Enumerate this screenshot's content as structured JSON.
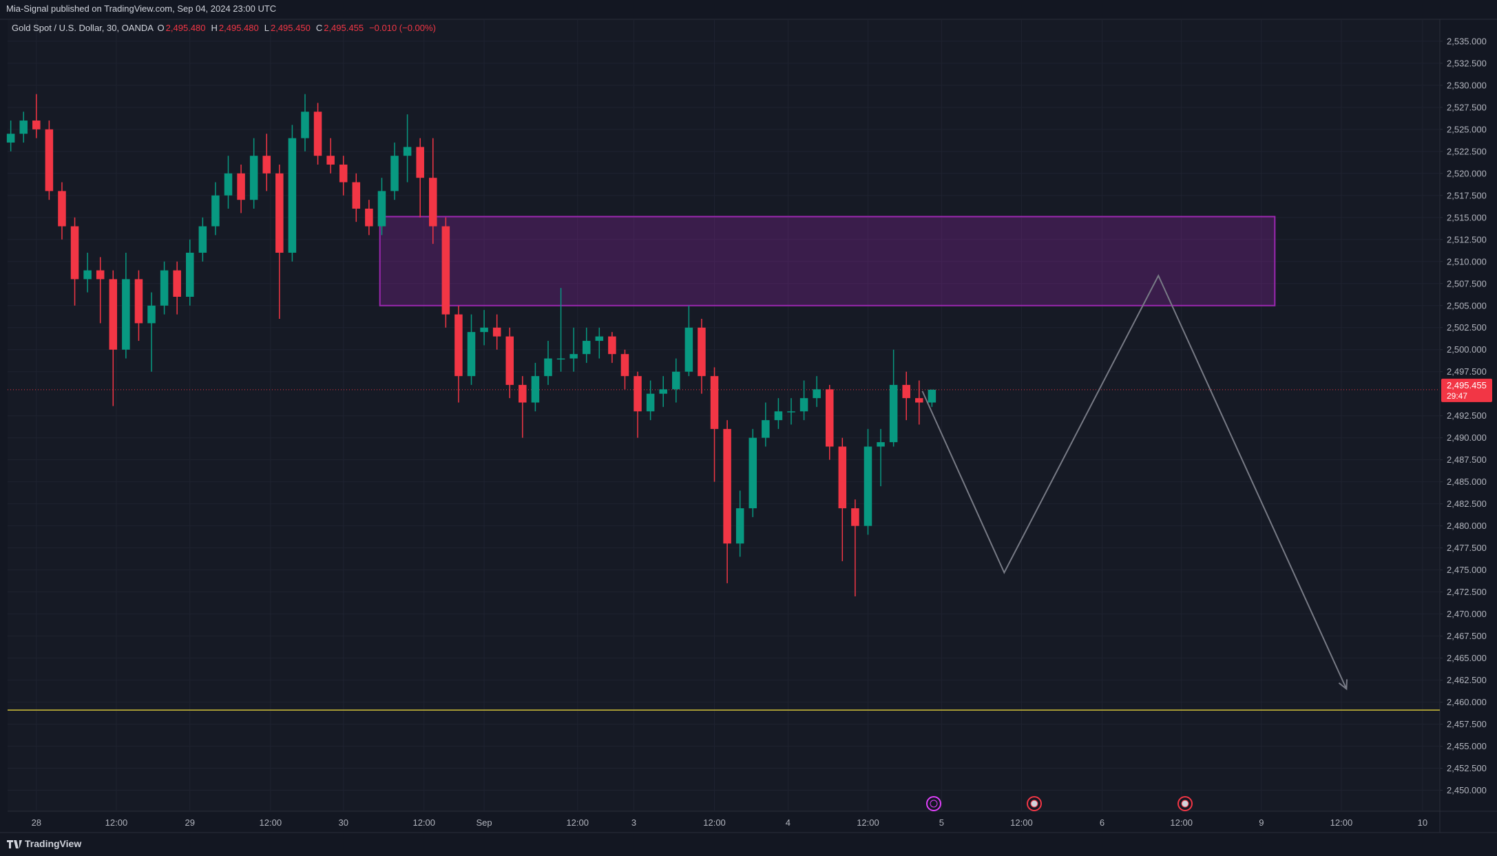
{
  "header": {
    "publisher": "Mia-Signal published on TradingView.com, Sep 04, 2024 23:00 UTC"
  },
  "footer": {
    "brand": "TradingView"
  },
  "chart_data": {
    "type": "candlestick",
    "symbol": "Gold Spot / U.S. Dollar, 30, OANDA",
    "ohlc_legend": [
      {
        "key": "O",
        "value": 2495.48,
        "label": "2,495.480"
      },
      {
        "key": "H",
        "value": 2495.48,
        "label": "2,495.480"
      },
      {
        "key": "L",
        "value": 2495.45,
        "label": "2,495.450"
      },
      {
        "key": "C",
        "value": 2495.455,
        "label": "2,495.455"
      }
    ],
    "change": "−0.010 (−0.00%)",
    "up_color": "#089981",
    "down_color": "#f23645",
    "x": [
      -4,
      -2,
      0,
      2,
      4,
      6,
      8,
      10,
      12,
      14,
      16,
      18,
      20,
      22,
      24,
      26,
      28,
      30,
      32,
      34,
      36,
      38,
      40,
      42,
      44,
      46,
      48,
      50,
      52,
      54,
      56,
      58,
      60,
      62,
      64,
      66,
      68,
      70,
      72,
      74,
      76,
      78,
      80,
      82,
      84,
      86,
      88,
      90,
      92,
      94,
      96,
      98,
      100,
      102,
      104,
      106,
      108,
      110,
      112,
      114,
      116,
      118,
      120,
      122,
      124,
      126,
      128,
      130,
      132,
      134,
      136,
      138,
      140
    ],
    "open": [
      2523.5,
      2524.5,
      2526,
      2525,
      2518,
      2514,
      2508,
      2509,
      2508,
      2500,
      2508,
      2503,
      2505,
      2509,
      2506,
      2511,
      2514,
      2517.5,
      2520,
      2517,
      2522,
      2520,
      2511,
      2524,
      2527,
      2522,
      2521,
      2519,
      2516,
      2514,
      2518,
      2522,
      2523,
      2519.5,
      2514,
      2504,
      2497,
      2502,
      2502.5,
      2501.5,
      2496,
      2494,
      2497,
      2499,
      2499,
      2499.5,
      2501,
      2501.5,
      2499.5,
      2497,
      2493,
      2495,
      2495.5,
      2497.5,
      2502.5,
      2497,
      2491,
      2478,
      2482,
      2490,
      2492,
      2493,
      2493,
      2494.5,
      2495.5,
      2489,
      2482,
      2480,
      2489,
      2489.5,
      2496,
      2494.5,
      2494
    ],
    "high": [
      2526,
      2527,
      2529,
      2526,
      2519,
      2515,
      2511,
      2510.5,
      2509,
      2511,
      2509,
      2506.5,
      2510,
      2510,
      2512.5,
      2515,
      2519,
      2522,
      2521,
      2524,
      2524.5,
      2521,
      2525.5,
      2529,
      2528,
      2524,
      2522,
      2520,
      2517,
      2519.5,
      2523.5,
      2526.7,
      2524,
      2524,
      2515,
      2505,
      2504,
      2504.5,
      2504,
      2502.5,
      2497,
      2498.5,
      2501,
      2507,
      2502.5,
      2502.5,
      2502.5,
      2502,
      2500,
      2497.5,
      2496.5,
      2497,
      2499,
      2505,
      2503.5,
      2498,
      2492,
      2484,
      2491,
      2494,
      2494.5,
      2494.5,
      2496.5,
      2497,
      2496,
      2490,
      2483,
      2491,
      2491,
      2500,
      2497.5,
      2496.5,
      2495.48
    ],
    "low": [
      2522.5,
      2523.5,
      2524,
      2517,
      2512.5,
      2505,
      2506.5,
      2503,
      2493.6,
      2499,
      2501,
      2497.5,
      2504,
      2504,
      2505,
      2510,
      2513,
      2516,
      2515.5,
      2516,
      2518,
      2503.5,
      2510,
      2522.5,
      2521,
      2520,
      2517.5,
      2514.5,
      2513,
      2513,
      2517,
      2519,
      2515,
      2512,
      2502.5,
      2494,
      2496,
      2500.5,
      2500,
      2494.5,
      2490,
      2493,
      2496,
      2497.5,
      2497.5,
      2498.5,
      2499,
      2498.5,
      2495.5,
      2490,
      2492,
      2493.5,
      2494,
      2497,
      2495,
      2485,
      2473.5,
      2476.5,
      2481,
      2489,
      2491,
      2491.5,
      2492,
      2493.5,
      2487.5,
      2476,
      2472,
      2479,
      2484.5,
      2489,
      2492,
      2491.5,
      2493.5
    ],
    "close": [
      2524.5,
      2526,
      2525,
      2518,
      2514,
      2508,
      2509,
      2508,
      2500,
      2508,
      2503,
      2505,
      2509,
      2506,
      2511,
      2514,
      2517.5,
      2520,
      2517,
      2522,
      2520,
      2511,
      2524,
      2527,
      2522,
      2521,
      2519,
      2516,
      2514,
      2518,
      2522,
      2523,
      2519.5,
      2514,
      2504,
      2497,
      2502,
      2502.5,
      2501.5,
      2496,
      2494,
      2497,
      2499,
      2499,
      2499.5,
      2501,
      2501.5,
      2499.5,
      2497,
      2493,
      2495,
      2495.5,
      2497.5,
      2502.5,
      2497,
      2491,
      2478,
      2482,
      2490,
      2492,
      2493,
      2493,
      2494.5,
      2495.5,
      2489,
      2482,
      2480,
      2489,
      2489.5,
      2496,
      2494.5,
      2494,
      2495.455
    ],
    "xlim": [
      -4.5,
      219.4
    ],
    "xticks": [
      {
        "value": 0,
        "label": "28"
      },
      {
        "value": 12.5,
        "label": "12:00"
      },
      {
        "value": 24,
        "label": "29"
      },
      {
        "value": 36.6,
        "label": "12:00"
      },
      {
        "value": 48,
        "label": "30"
      },
      {
        "value": 60.6,
        "label": "12:00"
      },
      {
        "value": 70,
        "label": "Sep"
      },
      {
        "value": 84.6,
        "label": "12:00"
      },
      {
        "value": 93.4,
        "label": "3"
      },
      {
        "value": 106,
        "label": "12:00"
      },
      {
        "value": 117.5,
        "label": "4"
      },
      {
        "value": 130,
        "label": "12:00"
      },
      {
        "value": 141.5,
        "label": "5"
      },
      {
        "value": 154,
        "label": "12:00"
      },
      {
        "value": 166.6,
        "label": "6"
      },
      {
        "value": 179,
        "label": "12:00"
      },
      {
        "value": 191.5,
        "label": "9"
      },
      {
        "value": 204,
        "label": "12:00"
      },
      {
        "value": 216.7,
        "label": "10"
      }
    ],
    "ylim": [
      2447.62,
      2537.49
    ],
    "yticks": [
      {
        "value": 2450,
        "label": "2,450.000"
      },
      {
        "value": 2452.5,
        "label": "2,452.500"
      },
      {
        "value": 2455,
        "label": "2,455.000"
      },
      {
        "value": 2457.5,
        "label": "2,457.500"
      },
      {
        "value": 2460,
        "label": "2,460.000"
      },
      {
        "value": 2462.5,
        "label": "2,462.500"
      },
      {
        "value": 2465,
        "label": "2,465.000"
      },
      {
        "value": 2467.5,
        "label": "2,467.500"
      },
      {
        "value": 2470,
        "label": "2,470.000"
      },
      {
        "value": 2472.5,
        "label": "2,472.500"
      },
      {
        "value": 2475,
        "label": "2,475.000"
      },
      {
        "value": 2477.5,
        "label": "2,477.500"
      },
      {
        "value": 2480,
        "label": "2,480.000"
      },
      {
        "value": 2482.5,
        "label": "2,482.500"
      },
      {
        "value": 2485,
        "label": "2,485.000"
      },
      {
        "value": 2487.5,
        "label": "2,487.500"
      },
      {
        "value": 2490,
        "label": "2,490.000"
      },
      {
        "value": 2492.5,
        "label": "2,492.500"
      },
      {
        "value": 2497.5,
        "label": "2,497.500"
      },
      {
        "value": 2500,
        "label": "2,500.000"
      },
      {
        "value": 2502.5,
        "label": "2,502.500"
      },
      {
        "value": 2505,
        "label": "2,505.000"
      },
      {
        "value": 2507.5,
        "label": "2,507.500"
      },
      {
        "value": 2510,
        "label": "2,510.000"
      },
      {
        "value": 2512.5,
        "label": "2,512.500"
      },
      {
        "value": 2515,
        "label": "2,515.000"
      },
      {
        "value": 2517.5,
        "label": "2,517.500"
      },
      {
        "value": 2520,
        "label": "2,520.000"
      },
      {
        "value": 2522.5,
        "label": "2,522.500"
      },
      {
        "value": 2525,
        "label": "2,525.000"
      },
      {
        "value": 2527.5,
        "label": "2,527.500"
      },
      {
        "value": 2530,
        "label": "2,530.000"
      },
      {
        "value": 2532.5,
        "label": "2,532.500"
      },
      {
        "value": 2535,
        "label": "2,535.000"
      }
    ],
    "grid": true,
    "last_price": {
      "value": 2495.455,
      "label": "2,495.455",
      "countdown": "29:47",
      "color": "#f23645"
    },
    "zone": {
      "x": [
        53.7,
        193.6
      ],
      "y": [
        2505,
        2515.1
      ],
      "color": "#9c27b0"
    },
    "projection": {
      "x": [
        138.5,
        151.3,
        175.4,
        204.8
      ],
      "y": [
        2495.3,
        2474.7,
        2508.4,
        2461.5
      ],
      "color": "#787b86"
    },
    "level": {
      "value": 2459.1,
      "color": "#d4c33a"
    }
  }
}
